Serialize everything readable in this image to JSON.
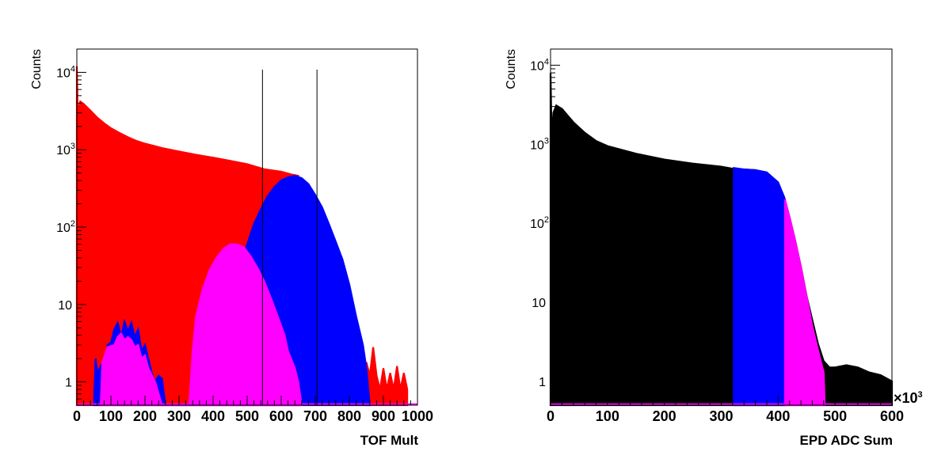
{
  "chart_data": [
    {
      "type": "area",
      "xlabel": "TOF Mult",
      "ylabel": "Counts",
      "xlim": [
        0,
        1000
      ],
      "ylim": [
        0.5,
        20000
      ],
      "y_scale": "log",
      "x_ticks": [
        "0",
        "100",
        "200",
        "300",
        "400",
        "500",
        "600",
        "700",
        "800",
        "900",
        "1000"
      ],
      "y_ticks": [
        {
          "value": 1,
          "base": "1",
          "exp": ""
        },
        {
          "value": 10,
          "base": "10",
          "exp": ""
        },
        {
          "value": 100,
          "base": "10",
          "exp": "2"
        },
        {
          "value": 1000,
          "base": "10",
          "exp": "3"
        },
        {
          "value": 10000,
          "base": "10",
          "exp": "4"
        }
      ],
      "cut_lines_x": [
        545,
        705
      ],
      "series": [
        {
          "color": "#ff0000",
          "points": [
            [
              0,
              12000
            ],
            [
              2,
              4000
            ],
            [
              5,
              3200
            ],
            [
              10,
              4200
            ],
            [
              20,
              3900
            ],
            [
              40,
              3200
            ],
            [
              60,
              2600
            ],
            [
              80,
              2200
            ],
            [
              100,
              1900
            ],
            [
              125,
              1650
            ],
            [
              150,
              1450
            ],
            [
              175,
              1300
            ],
            [
              200,
              1200
            ],
            [
              250,
              1050
            ],
            [
              300,
              950
            ],
            [
              350,
              860
            ],
            [
              400,
              790
            ],
            [
              450,
              720
            ],
            [
              500,
              650
            ],
            [
              550,
              560
            ],
            [
              600,
              520
            ],
            [
              630,
              480
            ],
            [
              650,
              460
            ]
          ]
        },
        {
          "color": "#ff0000",
          "points": [
            [
              850,
              1.8
            ],
            [
              860,
              1.2
            ],
            [
              870,
              2.8
            ],
            [
              880,
              1.2
            ],
            [
              890,
              0.8
            ],
            [
              900,
              1.5
            ],
            [
              910,
              0.8
            ],
            [
              920,
              1.3
            ],
            [
              930,
              0.8
            ],
            [
              940,
              1.6
            ],
            [
              950,
              0.8
            ],
            [
              960,
              1.3
            ],
            [
              970,
              0.8
            ]
          ]
        },
        {
          "color": "#0000ff",
          "points": [
            [
              50,
              0.5
            ],
            [
              55,
              2
            ],
            [
              60,
              1.3
            ],
            [
              70,
              1.6
            ],
            [
              80,
              0.8
            ],
            [
              90,
              3
            ],
            [
              100,
              3.2
            ],
            [
              110,
              4.8
            ],
            [
              120,
              5.8
            ],
            [
              130,
              3.8
            ],
            [
              140,
              6
            ],
            [
              150,
              4.5
            ],
            [
              160,
              5.8
            ],
            [
              170,
              3.8
            ],
            [
              180,
              4.8
            ],
            [
              190,
              2.5
            ],
            [
              200,
              3
            ],
            [
              210,
              2
            ],
            [
              220,
              1.3
            ],
            [
              230,
              1
            ],
            [
              240,
              1.2
            ],
            [
              250,
              1.1
            ],
            [
              260,
              0.5
            ],
            [
              380,
              0.5
            ],
            [
              385,
              1.2
            ],
            [
              400,
              1.8
            ],
            [
              420,
              3.5
            ],
            [
              440,
              7
            ],
            [
              460,
              14
            ],
            [
              480,
              30
            ],
            [
              500,
              60
            ],
            [
              520,
              110
            ],
            [
              540,
              170
            ],
            [
              560,
              250
            ],
            [
              580,
              330
            ],
            [
              600,
              400
            ],
            [
              620,
              440
            ],
            [
              640,
              460
            ],
            [
              660,
              430
            ],
            [
              680,
              360
            ],
            [
              700,
              260
            ],
            [
              720,
              180
            ],
            [
              740,
              110
            ],
            [
              760,
              65
            ],
            [
              780,
              38
            ],
            [
              800,
              18
            ],
            [
              820,
              7
            ],
            [
              840,
              3
            ],
            [
              850,
              1.5
            ],
            [
              860,
              0.5
            ]
          ]
        },
        {
          "color": "#ff00ff",
          "points": [
            [
              70,
              0.5
            ],
            [
              75,
              1.8
            ],
            [
              90,
              2.8
            ],
            [
              110,
              3
            ],
            [
              120,
              3.8
            ],
            [
              130,
              4.2
            ],
            [
              140,
              3.5
            ],
            [
              150,
              3.8
            ],
            [
              160,
              3.5
            ],
            [
              170,
              2.8
            ],
            [
              180,
              3
            ],
            [
              190,
              2
            ],
            [
              200,
              2.2
            ],
            [
              210,
              1.5
            ],
            [
              230,
              1
            ],
            [
              250,
              0.5
            ],
            [
              330,
              0.5
            ],
            [
              340,
              2.5
            ],
            [
              350,
              7
            ],
            [
              370,
              16
            ],
            [
              390,
              28
            ],
            [
              410,
              40
            ],
            [
              430,
              52
            ],
            [
              450,
              60
            ],
            [
              470,
              60
            ],
            [
              490,
              55
            ],
            [
              510,
              42
            ],
            [
              530,
              30
            ],
            [
              550,
              20
            ],
            [
              570,
              12
            ],
            [
              590,
              7
            ],
            [
              610,
              4
            ],
            [
              620,
              2.5
            ],
            [
              640,
              1.5
            ],
            [
              650,
              1
            ],
            [
              660,
              0.5
            ]
          ]
        }
      ]
    },
    {
      "type": "area",
      "xlabel": "EPD ADC Sum",
      "ylabel": "Counts",
      "x_multiplier": "×10",
      "x_multiplier_exp": "3",
      "xlim": [
        0,
        600
      ],
      "ylim": [
        0.5,
        16000
      ],
      "y_scale": "log",
      "x_ticks": [
        "0",
        "100",
        "200",
        "300",
        "400",
        "500",
        "600"
      ],
      "y_ticks": [
        {
          "value": 1,
          "base": "1",
          "exp": ""
        },
        {
          "value": 10,
          "base": "10",
          "exp": ""
        },
        {
          "value": 100,
          "base": "10",
          "exp": "2"
        },
        {
          "value": 1000,
          "base": "10",
          "exp": "3"
        },
        {
          "value": 10000,
          "base": "10",
          "exp": "4"
        }
      ],
      "series": [
        {
          "color": "#000000",
          "points": [
            [
              0,
              8000
            ],
            [
              2,
              1200
            ],
            [
              5,
              2500
            ],
            [
              10,
              3100
            ],
            [
              20,
              2800
            ],
            [
              40,
              1900
            ],
            [
              60,
              1400
            ],
            [
              80,
              1100
            ],
            [
              100,
              950
            ],
            [
              150,
              760
            ],
            [
              200,
              640
            ],
            [
              250,
              570
            ],
            [
              300,
              520
            ],
            [
              320,
              490
            ],
            [
              340,
              480
            ],
            [
              360,
              470
            ],
            [
              380,
              440
            ],
            [
              400,
              320
            ],
            [
              410,
              220
            ],
            [
              420,
              120
            ],
            [
              430,
              60
            ],
            [
              440,
              28
            ],
            [
              450,
              12
            ],
            [
              460,
              6
            ],
            [
              470,
              3
            ],
            [
              480,
              1.8
            ],
            [
              490,
              1.5
            ],
            [
              500,
              1.5
            ],
            [
              520,
              1.6
            ],
            [
              540,
              1.5
            ],
            [
              560,
              1.3
            ],
            [
              580,
              1.2
            ],
            [
              600,
              1
            ]
          ]
        },
        {
          "color": "#0000ff",
          "points": [
            [
              322,
              0.5
            ],
            [
              322,
              500
            ],
            [
              340,
              480
            ],
            [
              360,
              470
            ],
            [
              380,
              440
            ],
            [
              400,
              330
            ],
            [
              412,
              200
            ],
            [
              412,
              0.5
            ]
          ]
        },
        {
          "color": "#ff00ff",
          "points": [
            [
              412,
              0.5
            ],
            [
              412,
              200
            ],
            [
              420,
              120
            ],
            [
              430,
              60
            ],
            [
              440,
              28
            ],
            [
              450,
              12
            ],
            [
              460,
              5
            ],
            [
              470,
              2.5
            ],
            [
              480,
              1.3
            ],
            [
              482,
              0.5
            ]
          ]
        }
      ]
    }
  ]
}
